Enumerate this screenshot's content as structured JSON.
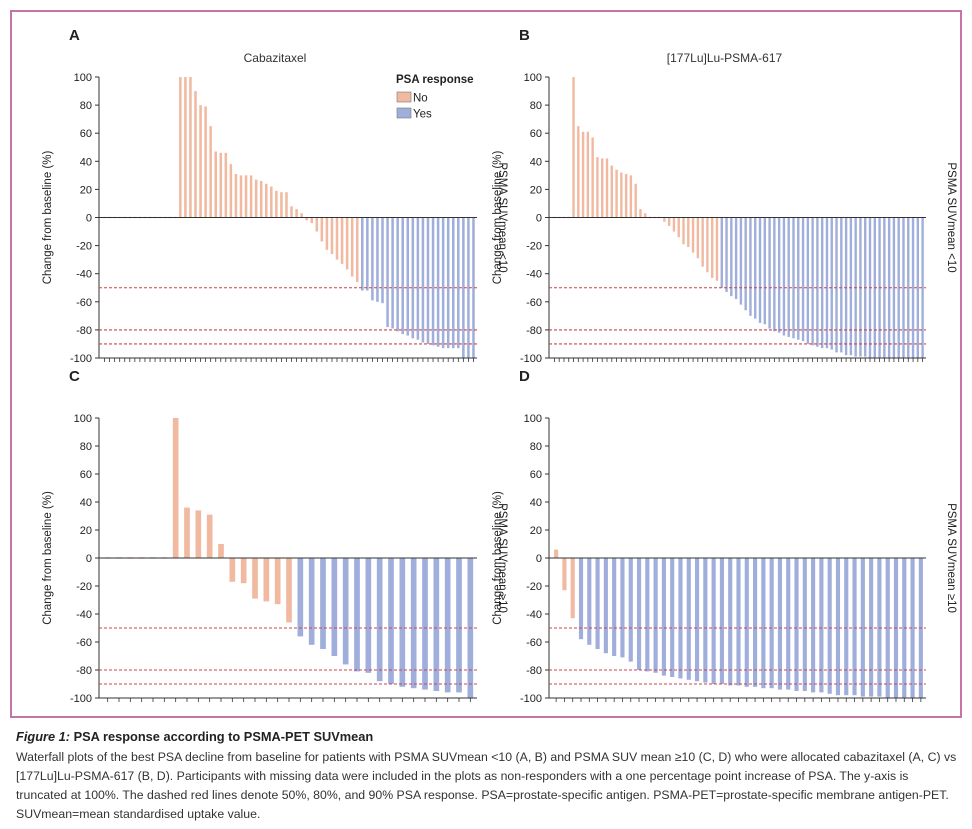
{
  "chart_data": [
    {
      "panel": "A",
      "type": "bar",
      "subtitle": "Cabazitaxel",
      "ylabel": "Change from baseline (%)",
      "side_label": "PSMA SUVmean <10",
      "ylim": [
        -100,
        100
      ],
      "yticks": [
        100,
        80,
        60,
        40,
        20,
        0,
        -20,
        -40,
        -60,
        -80,
        -100
      ],
      "reference_lines": [
        -50,
        -80,
        -90
      ],
      "series": [
        {
          "name": "No",
          "values": [
            1,
            1,
            1,
            1,
            1,
            1,
            1,
            1,
            1,
            1,
            1,
            1,
            1,
            1,
            1,
            100,
            100,
            100,
            90,
            80,
            79,
            65,
            47,
            46,
            46,
            38,
            31,
            30,
            30,
            30,
            27,
            26,
            24,
            22,
            19,
            18,
            18,
            8,
            6,
            3,
            -2,
            -4,
            -10,
            -17,
            -23,
            -26,
            -30,
            -33,
            -37,
            -42,
            -46
          ]
        },
        {
          "name": "Yes",
          "values": [
            -52,
            -52,
            -59,
            -60,
            -61,
            -78,
            -79,
            -81,
            -83,
            -84,
            -86,
            -87,
            -89,
            -90,
            -91,
            -92,
            -93,
            -93,
            -93,
            -93,
            -100,
            -100,
            -100
          ]
        }
      ]
    },
    {
      "panel": "B",
      "type": "bar",
      "subtitle": "[177Lu]Lu-PSMA-617",
      "ylabel": "Change from baseline (%)",
      "side_label": "PSMA SUVmean <10",
      "ylim": [
        -100,
        100
      ],
      "yticks": [
        100,
        80,
        60,
        40,
        20,
        0,
        -20,
        -40,
        -60,
        -80,
        -100
      ],
      "reference_lines": [
        -50,
        -80,
        -90
      ],
      "series": [
        {
          "name": "No",
          "values": [
            1,
            1,
            1,
            1,
            100,
            65,
            61,
            61,
            57,
            43,
            42,
            42,
            37,
            34,
            32,
            31,
            30,
            24,
            6,
            3,
            1,
            1,
            1,
            -3,
            -6,
            -10,
            -14,
            -19,
            -21,
            -25,
            -29,
            -35,
            -39,
            -43,
            -45
          ]
        },
        {
          "name": "Yes",
          "values": [
            -50,
            -53,
            -56,
            -58,
            -62,
            -66,
            -70,
            -72,
            -75,
            -76,
            -79,
            -81,
            -82,
            -84,
            -85,
            -86,
            -87,
            -88,
            -90,
            -91,
            -92,
            -93,
            -93,
            -94,
            -96,
            -96,
            -98,
            -98,
            -99,
            -99,
            -99,
            -100,
            -100,
            -100,
            -100,
            -100,
            -100,
            -100,
            -100,
            -100,
            -100,
            -100,
            -100
          ]
        }
      ]
    },
    {
      "panel": "C",
      "type": "bar",
      "subtitle": "",
      "ylabel": "Change from baseline (%)",
      "side_label": "PSMA SUVmean ≥10",
      "ylim": [
        -100,
        100
      ],
      "yticks": [
        100,
        80,
        60,
        40,
        20,
        0,
        -20,
        -40,
        -60,
        -80,
        -100
      ],
      "reference_lines": [
        -50,
        -80,
        -90
      ],
      "series": [
        {
          "name": "No",
          "values": [
            1,
            1,
            1,
            1,
            1,
            1,
            100,
            36,
            34,
            31,
            10,
            -17,
            -18,
            -29,
            -31,
            -33,
            -46
          ]
        },
        {
          "name": "Yes",
          "values": [
            -56,
            -62,
            -65,
            -70,
            -76,
            -81,
            -82,
            -88,
            -90,
            -92,
            -93,
            -94,
            -95,
            -96,
            -96,
            -100
          ]
        }
      ]
    },
    {
      "panel": "D",
      "type": "bar",
      "subtitle": "",
      "ylabel": "Change from baseline (%)",
      "side_label": "PSMA SUVmean ≥10",
      "ylim": [
        -100,
        100
      ],
      "yticks": [
        100,
        80,
        60,
        40,
        20,
        0,
        -20,
        -40,
        -60,
        -80,
        -100
      ],
      "reference_lines": [
        -50,
        -80,
        -90
      ],
      "series": [
        {
          "name": "No",
          "values": [
            6,
            -23,
            -43
          ]
        },
        {
          "name": "Yes",
          "values": [
            -58,
            -62,
            -65,
            -68,
            -70,
            -71,
            -74,
            -80,
            -81,
            -82,
            -84,
            -85,
            -86,
            -87,
            -88,
            -89,
            -90,
            -90,
            -91,
            -91,
            -92,
            -92,
            -93,
            -93,
            -94,
            -94,
            -95,
            -95,
            -96,
            -96,
            -97,
            -98,
            -98,
            -98,
            -99,
            -99,
            -99,
            -100,
            -100,
            -100,
            -100,
            -100
          ]
        }
      ]
    }
  ],
  "legend": {
    "title": "PSA response",
    "items": [
      {
        "label": "No",
        "color": "#f0b9a0"
      },
      {
        "label": "Yes",
        "color": "#9faedb"
      }
    ]
  },
  "colors": {
    "no": "#f0b9a0",
    "yes": "#9faedb",
    "reference_line": "#c8474f",
    "frame": "#c873a6"
  },
  "caption": {
    "figure_number": "Figure 1:",
    "title": "PSA response according to PSMA-PET SUVmean",
    "text": "Waterfall plots of the best PSA decline from baseline for patients with PSMA SUVmean <10 (A, B) and PSMA SUV mean ≥10 (C, D) who were allocated cabazitaxel (A, C) vs [177Lu]Lu-PSMA-617 (B, D). Participants with missing data were included in the plots as non-responders with a one percentage point increase of PSA. The y-axis is truncated at 100%. The dashed red lines denote 50%, 80%, and 90% PSA response. PSA=prostate-specific antigen. PSMA-PET=prostate-specific membrane antigen-PET. SUVmean=mean standardised uptake value."
  }
}
